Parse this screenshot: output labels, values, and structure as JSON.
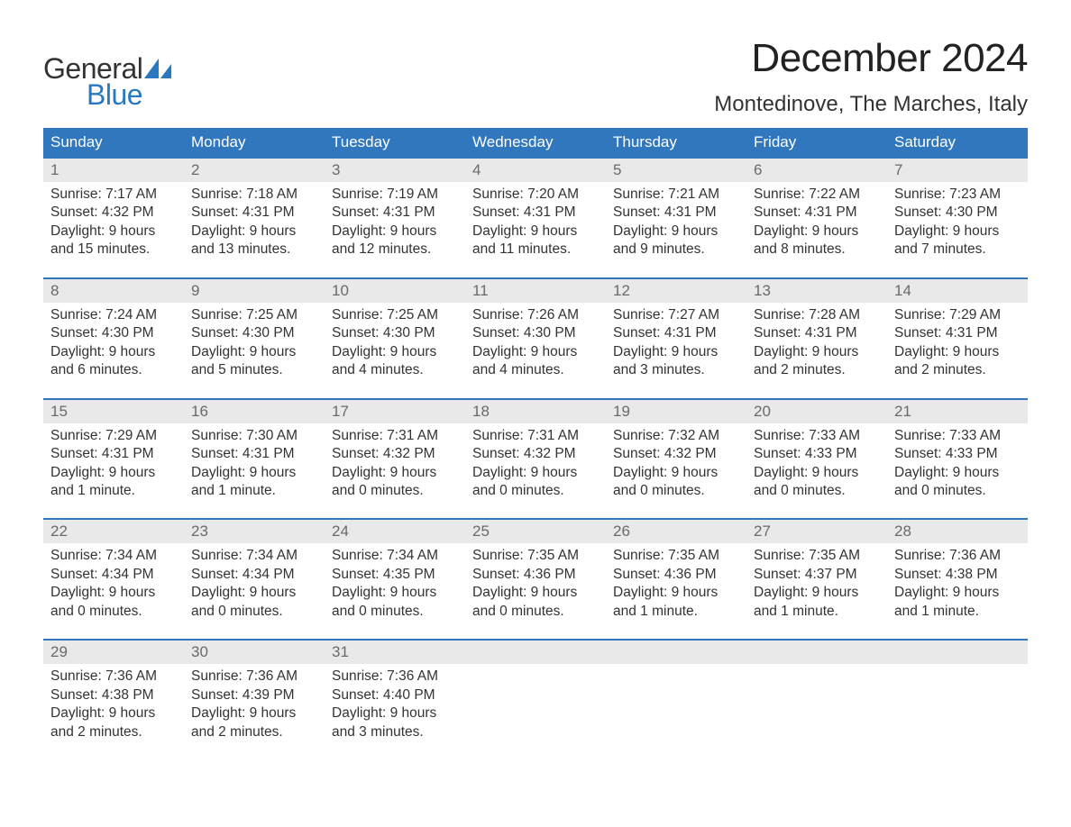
{
  "logo": {
    "word1": "General",
    "word2": "Blue",
    "word2_color": "#2a78c0",
    "sail_color": "#2a78c0"
  },
  "title": "December 2024",
  "location": "Montedinove, The Marches, Italy",
  "colors": {
    "header_bg": "#3077bd",
    "header_fg": "#ffffff",
    "week_rule": "#3077bd",
    "daynum_bg": "#e9e9e9",
    "daynum_fg": "#6a6a6a",
    "body_text": "#333333",
    "page_bg": "#ffffff"
  },
  "typography": {
    "title_fontsize_pt": 33,
    "location_fontsize_pt": 18,
    "dayname_fontsize_pt": 13,
    "body_fontsize_pt": 12,
    "font_family": "Arial"
  },
  "day_names": [
    "Sunday",
    "Monday",
    "Tuesday",
    "Wednesday",
    "Thursday",
    "Friday",
    "Saturday"
  ],
  "weeks": [
    {
      "nums": [
        "1",
        "2",
        "3",
        "4",
        "5",
        "6",
        "7"
      ],
      "cells": [
        {
          "sunrise": "Sunrise: 7:17 AM",
          "sunset": "Sunset: 4:32 PM",
          "d1": "Daylight: 9 hours",
          "d2": "and 15 minutes."
        },
        {
          "sunrise": "Sunrise: 7:18 AM",
          "sunset": "Sunset: 4:31 PM",
          "d1": "Daylight: 9 hours",
          "d2": "and 13 minutes."
        },
        {
          "sunrise": "Sunrise: 7:19 AM",
          "sunset": "Sunset: 4:31 PM",
          "d1": "Daylight: 9 hours",
          "d2": "and 12 minutes."
        },
        {
          "sunrise": "Sunrise: 7:20 AM",
          "sunset": "Sunset: 4:31 PM",
          "d1": "Daylight: 9 hours",
          "d2": "and 11 minutes."
        },
        {
          "sunrise": "Sunrise: 7:21 AM",
          "sunset": "Sunset: 4:31 PM",
          "d1": "Daylight: 9 hours",
          "d2": "and 9 minutes."
        },
        {
          "sunrise": "Sunrise: 7:22 AM",
          "sunset": "Sunset: 4:31 PM",
          "d1": "Daylight: 9 hours",
          "d2": "and 8 minutes."
        },
        {
          "sunrise": "Sunrise: 7:23 AM",
          "sunset": "Sunset: 4:30 PM",
          "d1": "Daylight: 9 hours",
          "d2": "and 7 minutes."
        }
      ]
    },
    {
      "nums": [
        "8",
        "9",
        "10",
        "11",
        "12",
        "13",
        "14"
      ],
      "cells": [
        {
          "sunrise": "Sunrise: 7:24 AM",
          "sunset": "Sunset: 4:30 PM",
          "d1": "Daylight: 9 hours",
          "d2": "and 6 minutes."
        },
        {
          "sunrise": "Sunrise: 7:25 AM",
          "sunset": "Sunset: 4:30 PM",
          "d1": "Daylight: 9 hours",
          "d2": "and 5 minutes."
        },
        {
          "sunrise": "Sunrise: 7:25 AM",
          "sunset": "Sunset: 4:30 PM",
          "d1": "Daylight: 9 hours",
          "d2": "and 4 minutes."
        },
        {
          "sunrise": "Sunrise: 7:26 AM",
          "sunset": "Sunset: 4:30 PM",
          "d1": "Daylight: 9 hours",
          "d2": "and 4 minutes."
        },
        {
          "sunrise": "Sunrise: 7:27 AM",
          "sunset": "Sunset: 4:31 PM",
          "d1": "Daylight: 9 hours",
          "d2": "and 3 minutes."
        },
        {
          "sunrise": "Sunrise: 7:28 AM",
          "sunset": "Sunset: 4:31 PM",
          "d1": "Daylight: 9 hours",
          "d2": "and 2 minutes."
        },
        {
          "sunrise": "Sunrise: 7:29 AM",
          "sunset": "Sunset: 4:31 PM",
          "d1": "Daylight: 9 hours",
          "d2": "and 2 minutes."
        }
      ]
    },
    {
      "nums": [
        "15",
        "16",
        "17",
        "18",
        "19",
        "20",
        "21"
      ],
      "cells": [
        {
          "sunrise": "Sunrise: 7:29 AM",
          "sunset": "Sunset: 4:31 PM",
          "d1": "Daylight: 9 hours",
          "d2": "and 1 minute."
        },
        {
          "sunrise": "Sunrise: 7:30 AM",
          "sunset": "Sunset: 4:31 PM",
          "d1": "Daylight: 9 hours",
          "d2": "and 1 minute."
        },
        {
          "sunrise": "Sunrise: 7:31 AM",
          "sunset": "Sunset: 4:32 PM",
          "d1": "Daylight: 9 hours",
          "d2": "and 0 minutes."
        },
        {
          "sunrise": "Sunrise: 7:31 AM",
          "sunset": "Sunset: 4:32 PM",
          "d1": "Daylight: 9 hours",
          "d2": "and 0 minutes."
        },
        {
          "sunrise": "Sunrise: 7:32 AM",
          "sunset": "Sunset: 4:32 PM",
          "d1": "Daylight: 9 hours",
          "d2": "and 0 minutes."
        },
        {
          "sunrise": "Sunrise: 7:33 AM",
          "sunset": "Sunset: 4:33 PM",
          "d1": "Daylight: 9 hours",
          "d2": "and 0 minutes."
        },
        {
          "sunrise": "Sunrise: 7:33 AM",
          "sunset": "Sunset: 4:33 PM",
          "d1": "Daylight: 9 hours",
          "d2": "and 0 minutes."
        }
      ]
    },
    {
      "nums": [
        "22",
        "23",
        "24",
        "25",
        "26",
        "27",
        "28"
      ],
      "cells": [
        {
          "sunrise": "Sunrise: 7:34 AM",
          "sunset": "Sunset: 4:34 PM",
          "d1": "Daylight: 9 hours",
          "d2": "and 0 minutes."
        },
        {
          "sunrise": "Sunrise: 7:34 AM",
          "sunset": "Sunset: 4:34 PM",
          "d1": "Daylight: 9 hours",
          "d2": "and 0 minutes."
        },
        {
          "sunrise": "Sunrise: 7:34 AM",
          "sunset": "Sunset: 4:35 PM",
          "d1": "Daylight: 9 hours",
          "d2": "and 0 minutes."
        },
        {
          "sunrise": "Sunrise: 7:35 AM",
          "sunset": "Sunset: 4:36 PM",
          "d1": "Daylight: 9 hours",
          "d2": "and 0 minutes."
        },
        {
          "sunrise": "Sunrise: 7:35 AM",
          "sunset": "Sunset: 4:36 PM",
          "d1": "Daylight: 9 hours",
          "d2": "and 1 minute."
        },
        {
          "sunrise": "Sunrise: 7:35 AM",
          "sunset": "Sunset: 4:37 PM",
          "d1": "Daylight: 9 hours",
          "d2": "and 1 minute."
        },
        {
          "sunrise": "Sunrise: 7:36 AM",
          "sunset": "Sunset: 4:38 PM",
          "d1": "Daylight: 9 hours",
          "d2": "and 1 minute."
        }
      ]
    },
    {
      "nums": [
        "29",
        "30",
        "31",
        "",
        "",
        "",
        ""
      ],
      "cells": [
        {
          "sunrise": "Sunrise: 7:36 AM",
          "sunset": "Sunset: 4:38 PM",
          "d1": "Daylight: 9 hours",
          "d2": "and 2 minutes."
        },
        {
          "sunrise": "Sunrise: 7:36 AM",
          "sunset": "Sunset: 4:39 PM",
          "d1": "Daylight: 9 hours",
          "d2": "and 2 minutes."
        },
        {
          "sunrise": "Sunrise: 7:36 AM",
          "sunset": "Sunset: 4:40 PM",
          "d1": "Daylight: 9 hours",
          "d2": "and 3 minutes."
        },
        null,
        null,
        null,
        null
      ]
    }
  ]
}
